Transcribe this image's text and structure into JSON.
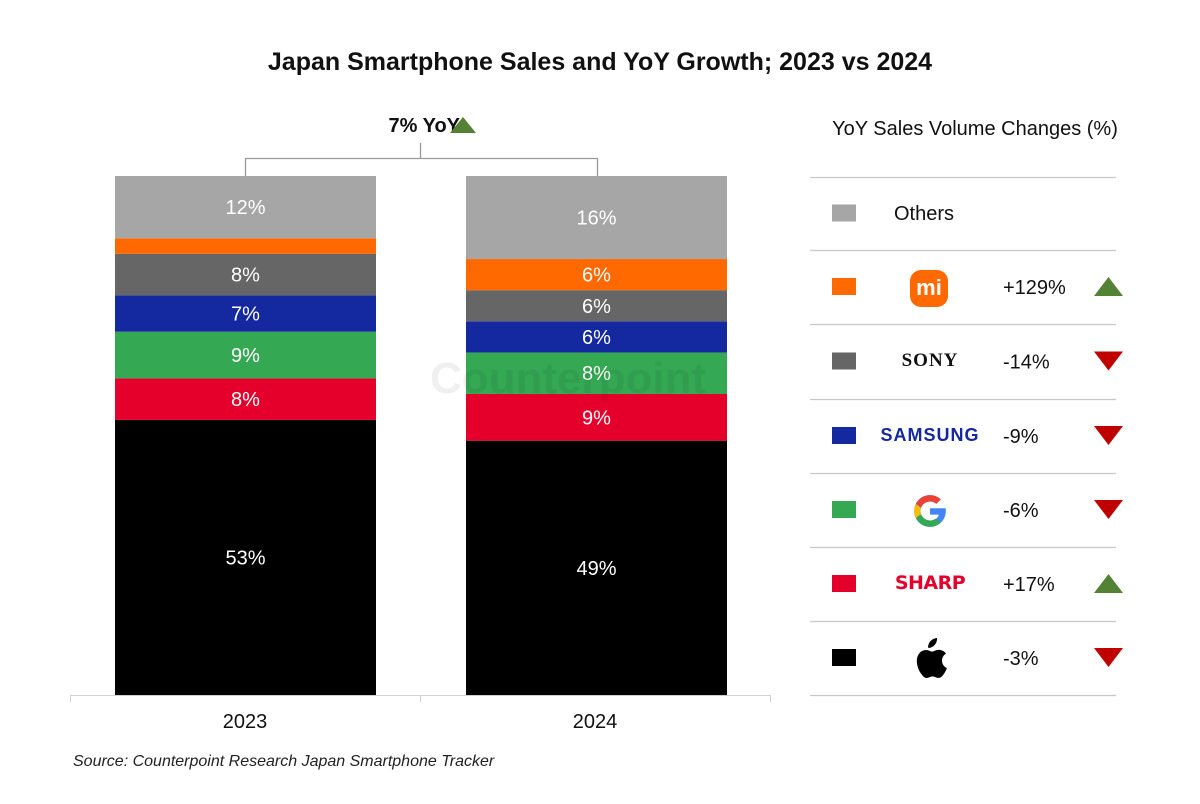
{
  "chart_data": {
    "type": "bar",
    "stacked": true,
    "title": "Japan Smartphone Sales and YoY Growth; 2023 vs 2024",
    "categories": [
      "2023",
      "2024"
    ],
    "ylim": [
      0,
      100
    ],
    "annotation": "7% YoY",
    "annotation_direction": "up",
    "series": [
      {
        "name": "Apple",
        "color": "#000000",
        "values": [
          53,
          49
        ],
        "labels": [
          "53%",
          "49%"
        ],
        "yoy": "-3%",
        "yoy_direction": "down"
      },
      {
        "name": "SHARP",
        "color": "#E4002B",
        "values": [
          8,
          9
        ],
        "labels": [
          "8%",
          "9%"
        ],
        "yoy": "+17%",
        "yoy_direction": "up"
      },
      {
        "name": "Google",
        "color": "#34A853",
        "values": [
          9,
          8
        ],
        "labels": [
          "9%",
          "8%"
        ],
        "yoy": "-6%",
        "yoy_direction": "down"
      },
      {
        "name": "SAMSUNG",
        "color": "#1428A0",
        "values": [
          7,
          6
        ],
        "labels": [
          "7%",
          "6%"
        ],
        "yoy": "-9%",
        "yoy_direction": "down"
      },
      {
        "name": "SONY",
        "color": "#666666",
        "values": [
          8,
          6
        ],
        "labels": [
          "8%",
          "6%"
        ],
        "yoy": "-14%",
        "yoy_direction": "down"
      },
      {
        "name": "Xiaomi",
        "color": "#FF6900",
        "values": [
          3,
          6
        ],
        "labels": [
          null,
          "6%"
        ],
        "yoy": "+129%",
        "yoy_direction": "up"
      },
      {
        "name": "Others",
        "color": "#A6A6A6",
        "values": [
          12,
          16
        ],
        "labels": [
          "12%",
          "16%"
        ],
        "yoy": null,
        "yoy_direction": null
      }
    ],
    "legend_title": "YoY Sales Volume Changes (%)",
    "legend_placement": "right"
  },
  "legend": {
    "others_label": "Others",
    "sony_logo": "SONY",
    "samsung_logo": "SAMSUNG",
    "sharp_logo": "SHARP",
    "xiaomi_logo": "mi"
  },
  "colors": {
    "up": "#548235",
    "down": "#C00000"
  },
  "watermark": "Counterpoint",
  "source": "Source: Counterpoint Research Japan Smartphone Tracker"
}
